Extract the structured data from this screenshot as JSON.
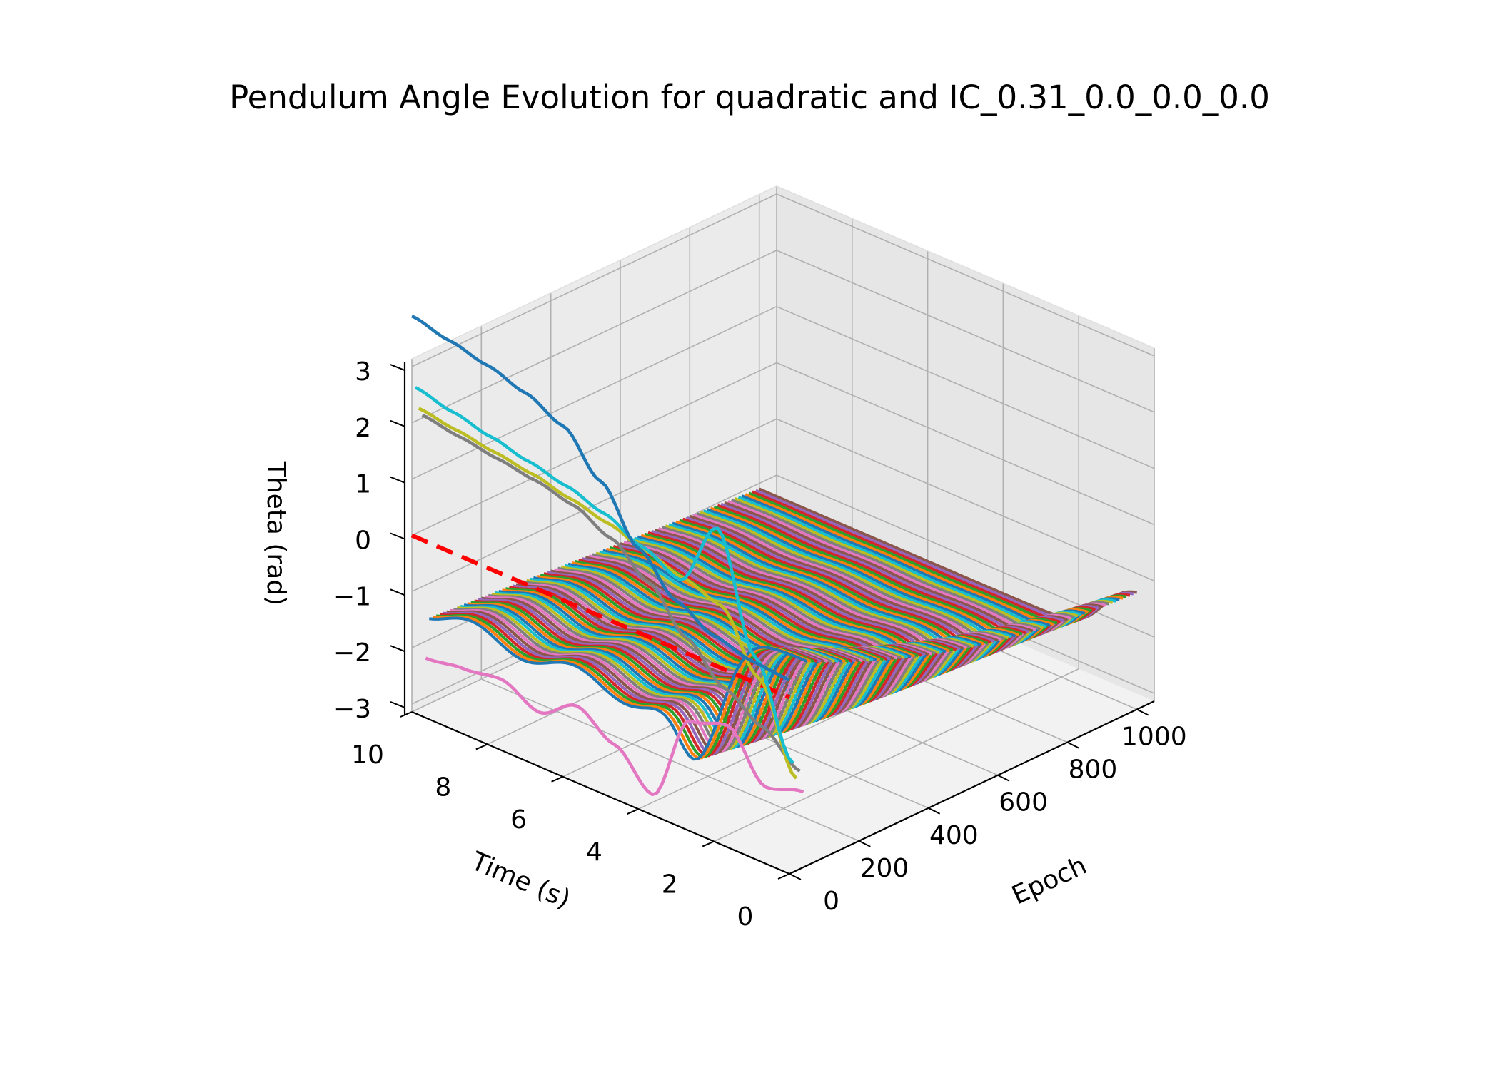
{
  "chart_data": {
    "type": "line",
    "projection": "3d",
    "title": "Pendulum Angle Evolution for quadratic and IC_0.31_0.0_0.0_0.0",
    "xlabel": "Epoch",
    "ylabel": "Time (s)",
    "zlabel": "Theta (rad)",
    "xlim": [
      0,
      1050
    ],
    "ylim": [
      0,
      10
    ],
    "zlim": [
      -3.14,
      3.14
    ],
    "xticks": [
      0,
      200,
      400,
      600,
      800,
      1000
    ],
    "yticks": [
      0,
      2,
      4,
      6,
      8,
      10
    ],
    "zticks": [
      3,
      2,
      1,
      0,
      -1,
      -2,
      -3
    ],
    "ztick_labels": [
      "3",
      "2",
      "1",
      "0",
      "−1",
      "−2",
      "−3"
    ],
    "grid": true,
    "legend": "none",
    "reference_line": {
      "value": 0.0,
      "style": "dashed",
      "color": "#ff0000"
    },
    "series": [
      {
        "epoch": 0,
        "color": "#1f77b4",
        "behavior": "diverges",
        "theta": [
          0.31,
          0.36,
          0.52,
          0.85,
          1.5,
          2.4,
          3.1,
          3.4,
          3.6,
          3.75,
          3.9
        ]
      },
      {
        "epoch": 10,
        "color": "#17becf",
        "behavior": "settles",
        "theta": [
          -1.2,
          0.4,
          2.4,
          1.2,
          1.5,
          1.8,
          2.0,
          2.15,
          2.3,
          2.45,
          2.6
        ]
      },
      {
        "epoch": 20,
        "color": "#bcbd22",
        "behavior": "settles",
        "theta": [
          -1.5,
          0.0,
          1.0,
          1.2,
          1.4,
          1.6,
          1.75,
          1.9,
          2.0,
          2.1,
          2.2
        ]
      },
      {
        "epoch": 30,
        "color": "#7f7f7f",
        "behavior": "settles",
        "theta": [
          -1.4,
          -0.9,
          -0.5,
          0.1,
          0.8,
          1.3,
          1.6,
          1.75,
          1.85,
          1.95,
          2.05
        ]
      },
      {
        "epoch": 40,
        "color": "#e377c2",
        "behavior": "oscillates",
        "theta": [
          -1.8,
          -2.0,
          -1.2,
          -1.4,
          -3.0,
          -2.4,
          -2.0,
          -2.4,
          -2.1,
          -2.2,
          -2.3
        ]
      }
    ],
    "band": {
      "epoch_start": 50,
      "epoch_end": 1000,
      "colors": [
        "#1f77b4",
        "#ff7f0e",
        "#2ca02c",
        "#d62728",
        "#9467bd",
        "#8c564b",
        "#e377c2",
        "#7f7f7f",
        "#bcbd22",
        "#17becf"
      ],
      "start_theta_range": [
        -1.0,
        0.5
      ],
      "final_theta_range": [
        -2.1,
        -1.5
      ]
    }
  }
}
